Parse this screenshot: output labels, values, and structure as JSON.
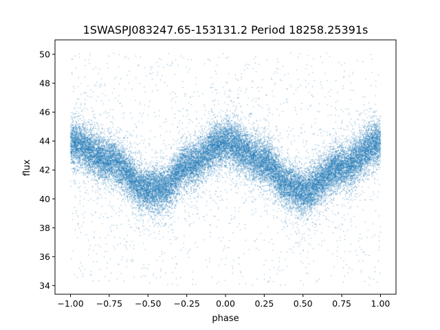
{
  "chart_data": {
    "type": "scatter",
    "title": "1SWASPJ083247.65-153131.2 Period 18258.25391s",
    "xlabel": "phase",
    "ylabel": "flux",
    "xlim": [
      -1.1,
      1.1
    ],
    "ylim": [
      33.4,
      51.0
    ],
    "xticks": [
      -1.0,
      -0.75,
      -0.5,
      -0.25,
      0.0,
      0.25,
      0.5,
      0.75,
      1.0
    ],
    "xtick_labels": [
      "−1.00",
      "−0.75",
      "−0.50",
      "−0.25",
      "0.00",
      "0.25",
      "0.50",
      "0.75",
      "1.00"
    ],
    "yticks": [
      34,
      36,
      38,
      40,
      42,
      44,
      46,
      48,
      50
    ],
    "ytick_labels": [
      "34",
      "36",
      "38",
      "40",
      "42",
      "44",
      "46",
      "48",
      "50"
    ],
    "grid": false,
    "legend": "none",
    "series": [
      {
        "color": "#1f77b4",
        "phase_range": [
          -1.0,
          1.0
        ],
        "mean_flux_curve": {
          "x": [
            -1.0,
            -0.75,
            -0.5,
            -0.4,
            -0.25,
            0.0,
            0.25,
            0.4,
            0.5,
            0.75,
            1.0
          ],
          "y": [
            43.9,
            42.7,
            40.6,
            40.7,
            42.3,
            43.9,
            42.6,
            41.0,
            40.5,
            42.2,
            43.9
          ]
        },
        "scatter_sigma": 0.75,
        "point_count": 30000,
        "outlier_flux_range": [
          34.0,
          50.2
        ]
      }
    ]
  }
}
